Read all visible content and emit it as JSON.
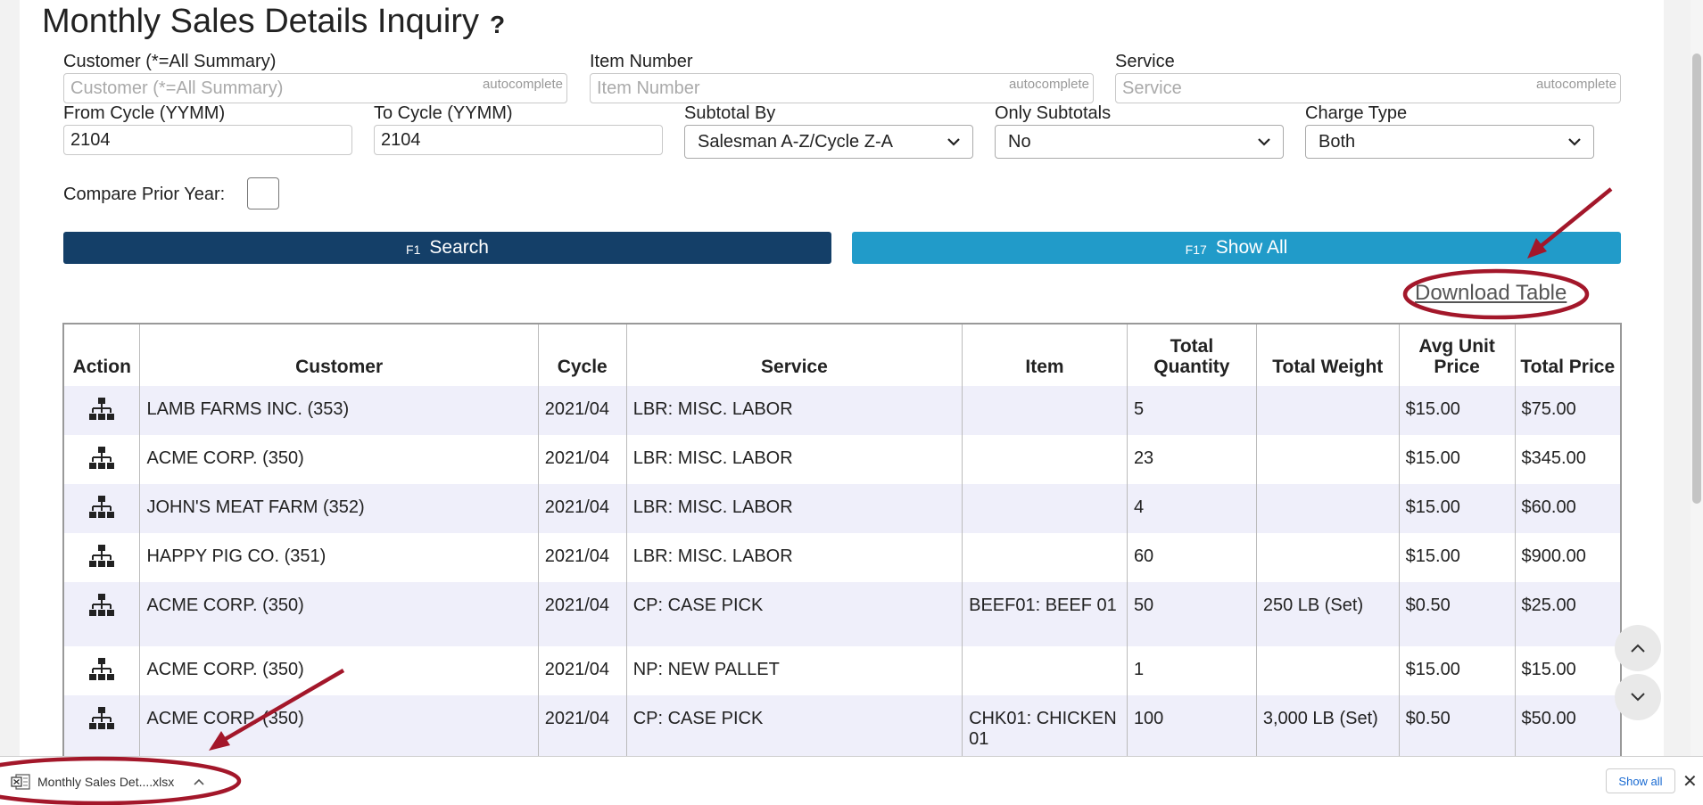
{
  "page": {
    "title": "Monthly Sales Details Inquiry",
    "help_glyph": "?"
  },
  "filters": {
    "customer": {
      "label": "Customer (*=All Summary)",
      "placeholder": "Customer (*=All Summary)",
      "tag": "autocomplete"
    },
    "item_number": {
      "label": "Item Number",
      "placeholder": "Item Number",
      "tag": "autocomplete"
    },
    "service": {
      "label": "Service",
      "placeholder": "Service",
      "tag": "autocomplete"
    },
    "from_cycle": {
      "label": "From Cycle (YYMM)",
      "value": "2104"
    },
    "to_cycle": {
      "label": "To Cycle (YYMM)",
      "value": "2104"
    },
    "subtotal_by": {
      "label": "Subtotal By",
      "value": "Salesman A-Z/Cycle Z-A"
    },
    "only_subtotals": {
      "label": "Only Subtotals",
      "value": "No"
    },
    "charge_type": {
      "label": "Charge Type",
      "value": "Both"
    },
    "compare_prior_year": {
      "label": "Compare Prior Year:"
    }
  },
  "buttons": {
    "search": {
      "key": "F1",
      "label": "Search"
    },
    "show_all": {
      "key": "F17",
      "label": "Show All"
    }
  },
  "download_link": "Download Table",
  "table": {
    "columns": {
      "action": "Action",
      "customer": "Customer",
      "cycle": "Cycle",
      "service": "Service",
      "item": "Item",
      "total_quantity": "Total Quantity",
      "total_weight": "Total Weight",
      "avg_unit_price": "Avg Unit Price",
      "total_price": "Total Price"
    },
    "rows": [
      {
        "customer": "LAMB FARMS INC. (353)",
        "cycle": "2021/04",
        "service": "LBR: MISC. LABOR",
        "item": "",
        "qty": "5",
        "weight": "",
        "avg": "$15.00",
        "total": "$75.00"
      },
      {
        "customer": "ACME CORP. (350)",
        "cycle": "2021/04",
        "service": "LBR: MISC. LABOR",
        "item": "",
        "qty": "23",
        "weight": "",
        "avg": "$15.00",
        "total": "$345.00"
      },
      {
        "customer": "JOHN'S MEAT FARM (352)",
        "cycle": "2021/04",
        "service": "LBR: MISC. LABOR",
        "item": "",
        "qty": "4",
        "weight": "",
        "avg": "$15.00",
        "total": "$60.00"
      },
      {
        "customer": "HAPPY PIG CO. (351)",
        "cycle": "2021/04",
        "service": "LBR: MISC. LABOR",
        "item": "",
        "qty": "60",
        "weight": "",
        "avg": "$15.00",
        "total": "$900.00"
      },
      {
        "customer": "ACME CORP. (350)",
        "cycle": "2021/04",
        "service": "CP: CASE PICK",
        "item": "BEEF01: BEEF 01",
        "qty": "50",
        "weight": "250 LB (Set)",
        "avg": "$0.50",
        "total": "$25.00"
      },
      {
        "customer": "ACME CORP. (350)",
        "cycle": "2021/04",
        "service": "NP: NEW PALLET",
        "item": "",
        "qty": "1",
        "weight": "",
        "avg": "$15.00",
        "total": "$15.00"
      },
      {
        "customer": "ACME CORP. (350)",
        "cycle": "2021/04",
        "service": "CP: CASE PICK",
        "item": "CHK01: CHICKEN 01",
        "qty": "100",
        "weight": "3,000 LB (Set)",
        "avg": "$0.50",
        "total": "$50.00"
      }
    ]
  },
  "download_bar": {
    "file_name": "Monthly Sales Det....xlsx",
    "show_all": "Show all",
    "close_glyph": "✕"
  },
  "icons": {
    "action_icon": "sitemap-icon",
    "scroll_up": "chevron-up-icon",
    "scroll_down": "chevron-down-icon",
    "file_icon": "excel-file-icon"
  },
  "colors": {
    "search_button": "#143f68",
    "show_all_button": "#219bc9",
    "annotation": "#a3172a",
    "row_stripe": "#efeffa"
  }
}
